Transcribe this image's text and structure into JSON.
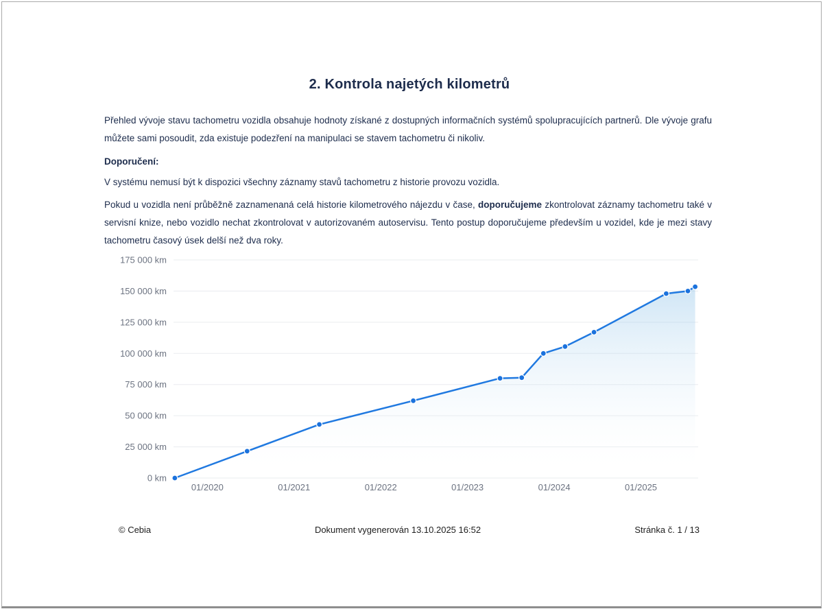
{
  "page": {
    "title": "2. Kontrola najetých kilometrů",
    "intro": "Přehled vývoje stavu tachometru vozidla obsahuje hodnoty získané z dostupných informačních systémů spolupracujících partnerů. Dle vývoje grafu můžete sami posoudit, zda existuje podezření na manipulaci se stavem tachometru či nikoliv.",
    "recommendation_label": "Doporučení:",
    "note": "V systému nemusí být k dispozici všechny záznamy stavů tachometru z historie provozu vozidla.",
    "advice": {
      "part1": "Pokud u vozidla není průběžně zaznamenaná celá historie kilometrového nájezdu v čase, ",
      "bold": "doporučujeme",
      "part2": " zkontrolovat záznamy tachometru také v servisní knize, nebo vozidlo nechat zkontrolovat v autorizovaném autoservisu. Tento postup doporučujeme především u vozidel, kde je mezi stavy tachometru časový úsek delší než dva roky."
    }
  },
  "footer": {
    "copyright": "© Cebia",
    "generated": "Dokument vygenerován 13.10.2025 16:52",
    "page_number": "Stránka č. 1 / 13"
  },
  "chart_data": {
    "type": "line",
    "title": "",
    "xlabel": "",
    "ylabel": "km",
    "grid": true,
    "legend": false,
    "ylim": [
      0,
      175000
    ],
    "xlim_decimal_years": [
      2019.61,
      2025.66
    ],
    "y_ticks": [
      {
        "value": 175000,
        "label": "175 000 km"
      },
      {
        "value": 150000,
        "label": "150 000 km"
      },
      {
        "value": 125000,
        "label": "125 000 km"
      },
      {
        "value": 100000,
        "label": "100 000 km"
      },
      {
        "value": 75000,
        "label": "75 000 km"
      },
      {
        "value": 50000,
        "label": "50 000 km"
      },
      {
        "value": 25000,
        "label": "25 000 km"
      },
      {
        "value": 0,
        "label": "0 km"
      }
    ],
    "x_ticks": [
      {
        "year": 2020,
        "label": "01/2020"
      },
      {
        "year": 2021,
        "label": "01/2021"
      },
      {
        "year": 2022,
        "label": "01/2022"
      },
      {
        "year": 2023,
        "label": "01/2023"
      },
      {
        "year": 2024,
        "label": "01/2024"
      },
      {
        "year": 2025,
        "label": "01/2025"
      }
    ],
    "colors": {
      "line": "#2079e0",
      "point_fill": "#1b72dd",
      "area_top": "#82bce6",
      "grid": "#eaecef",
      "tick_text": "#6b7280"
    },
    "series": [
      {
        "name": "odometer-readings",
        "points": [
          {
            "date": "08/2019",
            "km": 0
          },
          {
            "date": "06/2020",
            "km": 21500
          },
          {
            "date": "04/2021",
            "km": 43000
          },
          {
            "date": "05/2022",
            "km": 62000
          },
          {
            "date": "05/2023",
            "km": 80000
          },
          {
            "date": "08/2023",
            "km": 80500
          },
          {
            "date": "11/2023",
            "km": 100000
          },
          {
            "date": "02/2024",
            "km": 105500
          },
          {
            "date": "06/2024",
            "km": 117000
          },
          {
            "date": "04/2025",
            "km": 148000
          },
          {
            "date": "07/2025",
            "km": 150000
          },
          {
            "date": "08/2025",
            "km": 153500
          }
        ]
      }
    ]
  }
}
